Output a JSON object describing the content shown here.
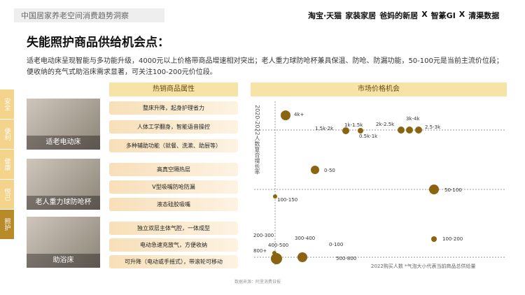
{
  "header": {
    "report": "中国居家养老空间消费趋势洞察",
    "partners": [
      "淘宝·天猫",
      "家装家居",
      "爸妈的新居",
      "X",
      "智篆GI",
      "X",
      "清渠数据"
    ]
  },
  "title": "失能照护商品供给机会点：",
  "summary": "适老电动床呈现智能与多功能升级，4000元以上价格带商品增速相对突出；老人重力球防呛杯兼具保温、防呛、防漏功能，50-100元是当前主流价位段；便收纳的充气式助浴床需求显著，可关注100-200元价位段。",
  "tabs": [
    "安全",
    "便利",
    "健康",
    "悦己",
    "照护"
  ],
  "columns": {
    "attributes": "热销商品属性",
    "market": "市场价格机会"
  },
  "products": [
    {
      "name": "适老电动床",
      "attributes": [
        "整床升降，起身护理省力",
        "人体工学翻身，智能语音操控",
        "多种辅助功能（就餐、洗漱、助厨等）"
      ],
      "bubbles": [
        "4k+",
        "1.5k-2k",
        "1k-1.5k",
        "0.5k-1k",
        "2k-2.5k",
        "3k-4k",
        "2.5-3k"
      ]
    },
    {
      "name": "老人重力球防呛杯",
      "attributes": [
        "高真空隔热层",
        "V型吸嘴防呛防漏",
        "液态硅胶吸嘴"
      ],
      "bubbles": [
        "0-50",
        "100-150",
        "50-100"
      ]
    },
    {
      "name": "助浴床",
      "attributes": [
        "独立双层主体气腔，一体成型",
        "电动急速充放气，方便收纳",
        "可升降（电动或手摇式），带滚轮可移动"
      ],
      "bubbles": [
        "200-300",
        "400-500",
        "300-400",
        "0-100",
        "800+",
        "500-800",
        "100-200"
      ]
    }
  ],
  "axis_label": "2020-2022人数复合增长率",
  "note": "2022购买人数 *气泡大小代表当前商品总供给量",
  "source": "数据来源：阿里消费日报"
}
